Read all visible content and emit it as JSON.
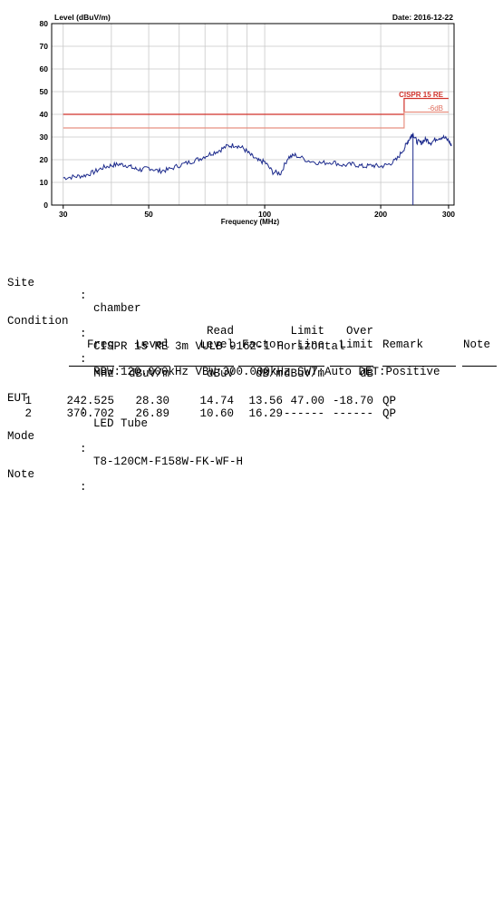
{
  "chart_data": {
    "type": "line",
    "ylabel": "Level (dBuV/m)",
    "xlabel": "Frequency (MHz)",
    "date": "Date: 2016-12-22",
    "xscale": "log",
    "xlim": [
      28,
      310
    ],
    "ylim": [
      0,
      80
    ],
    "xticks": [
      30,
      50,
      100,
      200,
      300
    ],
    "xtick_labels": [
      "30",
      "50",
      "100",
      "200",
      "300"
    ],
    "yticks": [
      0,
      10,
      20,
      30,
      40,
      50,
      60,
      70,
      80
    ],
    "grid": true,
    "series": [
      {
        "x": [
          30,
          32,
          34,
          36,
          38,
          40,
          42,
          44,
          46,
          48,
          50,
          53,
          56,
          60,
          64,
          68,
          72,
          76,
          80,
          84,
          88,
          92,
          96,
          100,
          105,
          110,
          115,
          120,
          130,
          140,
          150,
          160,
          170,
          180,
          190,
          200,
          210,
          220,
          230,
          235,
          240,
          242.5,
          248,
          255,
          262,
          270,
          280,
          290,
          300,
          305
        ],
        "values": [
          12.0,
          12.5,
          13.0,
          14.5,
          16.5,
          17.5,
          18.0,
          17.5,
          16.0,
          15.5,
          16.5,
          15.0,
          15.5,
          17.5,
          19.0,
          20.5,
          22.5,
          24.0,
          26.0,
          26.5,
          25.0,
          22.0,
          19.5,
          19.0,
          14.5,
          14.0,
          21.0,
          22.0,
          19.5,
          18.5,
          19.0,
          17.5,
          18.0,
          17.0,
          17.5,
          17.0,
          18.0,
          20.0,
          25.0,
          28.0,
          30.5,
          31.5,
          28.0,
          27.5,
          29.0,
          27.5,
          29.5,
          30.0,
          28.5,
          26.0
        ]
      }
    ],
    "limit_lines": [
      {
        "name": "CISPR 15 RE",
        "points": [
          [
            30,
            40
          ],
          [
            230,
            40
          ],
          [
            230,
            47
          ],
          [
            300,
            47
          ]
        ]
      },
      {
        "name": "-6dB",
        "points": [
          [
            30,
            34
          ],
          [
            230,
            34
          ],
          [
            230,
            41
          ],
          [
            300,
            41
          ]
        ]
      }
    ],
    "marker_x": 242.525
  },
  "info": {
    "site_key": "Site",
    "site_val": "chamber",
    "cond_key": "Condition",
    "cond_val": "CISPR 15 RE 3m VULB 9162-1 Horizontal",
    "cond2_val": "RBW:120.000kHz VBW:300.000kHz SWT:Auto DET:Positive",
    "eut_key": "EUT",
    "eut_val": "LED Tube",
    "mode_key": "Mode",
    "mode_val": "T8-120CM-F158W-FK-WF-H",
    "note_key": "Note",
    "note_val": "",
    "colon": ":"
  },
  "table": {
    "headers": {
      "freq": "Freq",
      "level": "Level",
      "read": "Read",
      "read2": "Level",
      "factor": "Factor",
      "limit": "Limit",
      "limit2": "Line",
      "over": "Over",
      "over2": "Limit",
      "remark": "Remark",
      "note": "Note"
    },
    "units": {
      "freq": "MHz",
      "level": "dBuV/m",
      "read": "dBuV",
      "factor": "dB/m",
      "limit": "dBuV/m",
      "over": "dB"
    },
    "rows": [
      {
        "no": "1",
        "freq": "242.525",
        "level": "28.30",
        "read": "14.74",
        "factor": "13.56",
        "limit": "47.00",
        "over": "-18.70",
        "remark": "QP"
      },
      {
        "no": "2",
        "freq": "370.702",
        "level": "26.89",
        "read": "10.60",
        "factor": "16.29",
        "limit": "------",
        "over": "------",
        "remark": "QP"
      }
    ]
  }
}
